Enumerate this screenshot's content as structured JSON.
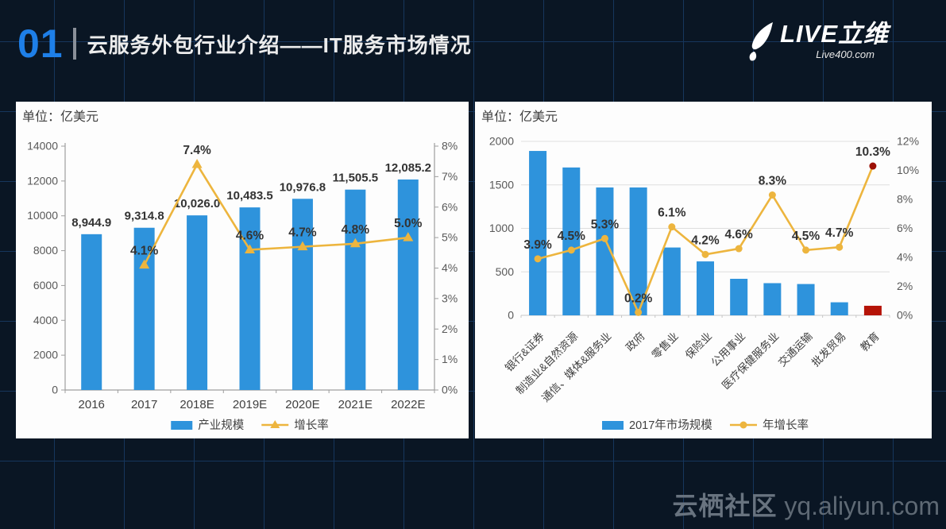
{
  "header": {
    "number": "01",
    "title": "云服务外包行业介绍——IT服务市场情况"
  },
  "logo": {
    "name": "LIVE立维",
    "url": "Live400.com"
  },
  "footer": {
    "site_name": "云栖社区",
    "site_url": "yq.aliyun.com"
  },
  "colors": {
    "bar_blue": "#2e93dc",
    "line_gold": "#edb53e",
    "highlight_red": "#b51307",
    "axis_grey": "#9e9e9e",
    "grid_grey": "#dedede",
    "label_dark": "#333333",
    "tick_grey": "#595959",
    "accent_blue": "#1e7fe8"
  },
  "chart_data": [
    {
      "type": "bar",
      "subtype": "combo-bar-line",
      "unit_label": "单位：亿美元",
      "categories": [
        "2016",
        "2017",
        "2018E",
        "2019E",
        "2020E",
        "2021E",
        "2022E"
      ],
      "series": [
        {
          "name": "产业规模",
          "kind": "bar",
          "values": [
            8944.9,
            9314.8,
            10026.0,
            10483.5,
            10976.8,
            11505.5,
            12085.2
          ],
          "labels": [
            "8,944.9",
            "9,314.8",
            "10,026.0",
            "10,483.5",
            "10,976.8",
            "11,505.5",
            "12,085.2"
          ]
        },
        {
          "name": "增长率",
          "kind": "line",
          "marker": "triangle",
          "values": [
            null,
            4.1,
            7.4,
            4.6,
            4.7,
            4.8,
            5.0
          ],
          "labels": [
            "",
            "4.1%",
            "7.4%",
            "4.6%",
            "4.7%",
            "4.8%",
            "5.0%"
          ]
        }
      ],
      "left_axis": {
        "min": 0,
        "max": 14000,
        "ticks": [
          "0",
          "2000",
          "4000",
          "6000",
          "8000",
          "10000",
          "12000",
          "14000"
        ]
      },
      "right_axis": {
        "min": 0,
        "max": 8,
        "ticks": [
          "0%",
          "1%",
          "2%",
          "3%",
          "4%",
          "5%",
          "6%",
          "7%",
          "8%"
        ]
      },
      "gridlines": false,
      "legend_position": "bottom"
    },
    {
      "type": "bar",
      "subtype": "combo-bar-line",
      "unit_label": "单位：亿美元",
      "categories": [
        "银行&证券",
        "制造业&自然资源",
        "通信、媒体&服务业",
        "政府",
        "零售业",
        "保险业",
        "公用事业",
        "医疗保健服务业",
        "交通运输",
        "批发贸易",
        "教育"
      ],
      "series": [
        {
          "name": "2017年市场规模",
          "kind": "bar",
          "highlight_last": true,
          "values": [
            1890,
            1700,
            1470,
            1470,
            780,
            620,
            420,
            370,
            360,
            150,
            110
          ]
        },
        {
          "name": "年增长率",
          "kind": "line",
          "marker": "circle",
          "highlight_last": true,
          "values": [
            3.9,
            4.5,
            5.3,
            0.2,
            6.1,
            4.2,
            4.6,
            8.3,
            4.5,
            4.7,
            10.3
          ],
          "labels": [
            "3.9%",
            "4.5%",
            "5.3%",
            "0.2%",
            "6.1%",
            "4.2%",
            "4.6%",
            "8.3%",
            "4.5%",
            "4.7%",
            "10.3%"
          ]
        }
      ],
      "left_axis": {
        "min": 0,
        "max": 2000,
        "ticks": [
          "0",
          "500",
          "1000",
          "1500",
          "2000"
        ]
      },
      "right_axis": {
        "min": 0,
        "max": 12,
        "ticks": [
          "0%",
          "2%",
          "4%",
          "6%",
          "8%",
          "10%",
          "12%"
        ]
      },
      "gridlines": true,
      "legend_position": "bottom"
    }
  ]
}
